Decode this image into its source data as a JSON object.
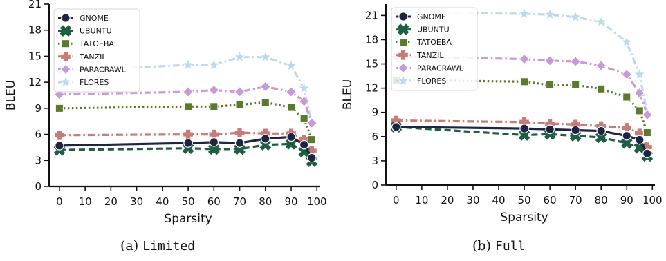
{
  "chart_data": [
    {
      "type": "line",
      "caption_prefix": "(a)",
      "caption_name": "Limited",
      "xlabel": "Sparsity",
      "ylabel": "BLEU",
      "xticks": [
        0,
        10,
        20,
        30,
        40,
        50,
        60,
        70,
        80,
        90,
        100
      ],
      "yticks": [
        0,
        3,
        6,
        9,
        12,
        15,
        18,
        21
      ],
      "xlim": [
        -4,
        101
      ],
      "ylim": [
        0,
        21
      ],
      "legend_position": "top-left",
      "x": [
        0,
        50,
        60,
        70,
        80,
        90,
        95,
        98
      ],
      "series": [
        {
          "name": "GNOME",
          "color": "#1e2441",
          "marker": "circle",
          "dash": "solid",
          "values": [
            4.7,
            5.0,
            5.1,
            5.0,
            5.5,
            5.7,
            4.8,
            3.3
          ]
        },
        {
          "name": "UBUNTU",
          "color": "#1e5e43",
          "marker": "x",
          "dash": "dashed",
          "values": [
            4.2,
            4.4,
            4.3,
            4.3,
            4.8,
            4.9,
            4.0,
            2.9
          ]
        },
        {
          "name": "TATOEBA",
          "color": "#5b7a2e",
          "marker": "square",
          "dash": "dotted",
          "values": [
            9.0,
            9.2,
            9.2,
            9.4,
            9.7,
            9.1,
            7.8,
            5.4
          ]
        },
        {
          "name": "TANZIL",
          "color": "#c97b78",
          "marker": "plus",
          "dash": "dashdot",
          "values": [
            5.9,
            6.0,
            6.0,
            6.2,
            6.1,
            6.1,
            5.4,
            4.1
          ]
        },
        {
          "name": "PARACRAWL",
          "color": "#c99ad8",
          "marker": "diamond",
          "dash": "dashdot",
          "values": [
            10.6,
            10.9,
            11.1,
            10.9,
            11.5,
            10.9,
            9.8,
            7.3
          ]
        },
        {
          "name": "FLORES",
          "color": "#bcdaec",
          "marker": "star",
          "dash": "dashdot",
          "values": [
            13.3,
            14.0,
            14.0,
            14.9,
            14.9,
            13.9,
            11.3,
            7.3
          ]
        }
      ]
    },
    {
      "type": "line",
      "caption_prefix": "(b)",
      "caption_name": "Full",
      "xlabel": "Sparsity",
      "ylabel": "BLEU",
      "xticks": [
        0,
        10,
        20,
        30,
        40,
        50,
        60,
        70,
        80,
        90,
        100
      ],
      "yticks": [
        0,
        3,
        6,
        9,
        12,
        15,
        18,
        21
      ],
      "xlim": [
        -4,
        101
      ],
      "ylim": [
        0,
        22.4
      ],
      "legend_position": "top-left",
      "x": [
        0,
        50,
        60,
        70,
        80,
        90,
        95,
        98
      ],
      "series": [
        {
          "name": "GNOME",
          "color": "#1e2441",
          "marker": "circle",
          "dash": "solid",
          "values": [
            7.2,
            7.0,
            6.9,
            6.8,
            6.7,
            6.1,
            5.6,
            3.9
          ]
        },
        {
          "name": "UBUNTU",
          "color": "#1e5e43",
          "marker": "x",
          "dash": "dashed",
          "values": [
            7.2,
            6.2,
            6.3,
            6.1,
            5.9,
            5.2,
            4.6,
            3.6
          ]
        },
        {
          "name": "TATOEBA",
          "color": "#5b7a2e",
          "marker": "square",
          "dash": "dotted",
          "values": [
            13.0,
            12.8,
            12.4,
            12.4,
            11.9,
            10.9,
            9.2,
            6.5
          ]
        },
        {
          "name": "TANZIL",
          "color": "#c97b78",
          "marker": "plus",
          "dash": "dashdot",
          "values": [
            8.0,
            7.8,
            7.6,
            7.5,
            7.3,
            7.1,
            6.4,
            4.7
          ]
        },
        {
          "name": "PARACRAWL",
          "color": "#c99ad8",
          "marker": "diamond",
          "dash": "dashdot",
          "values": [
            15.9,
            15.6,
            15.4,
            15.3,
            14.8,
            13.7,
            11.4,
            8.7
          ]
        },
        {
          "name": "FLORES",
          "color": "#bcdaec",
          "marker": "star",
          "dash": "dashdot",
          "values": [
            21.4,
            21.2,
            21.1,
            20.8,
            20.2,
            17.7,
            13.7,
            8.8
          ]
        }
      ]
    }
  ]
}
